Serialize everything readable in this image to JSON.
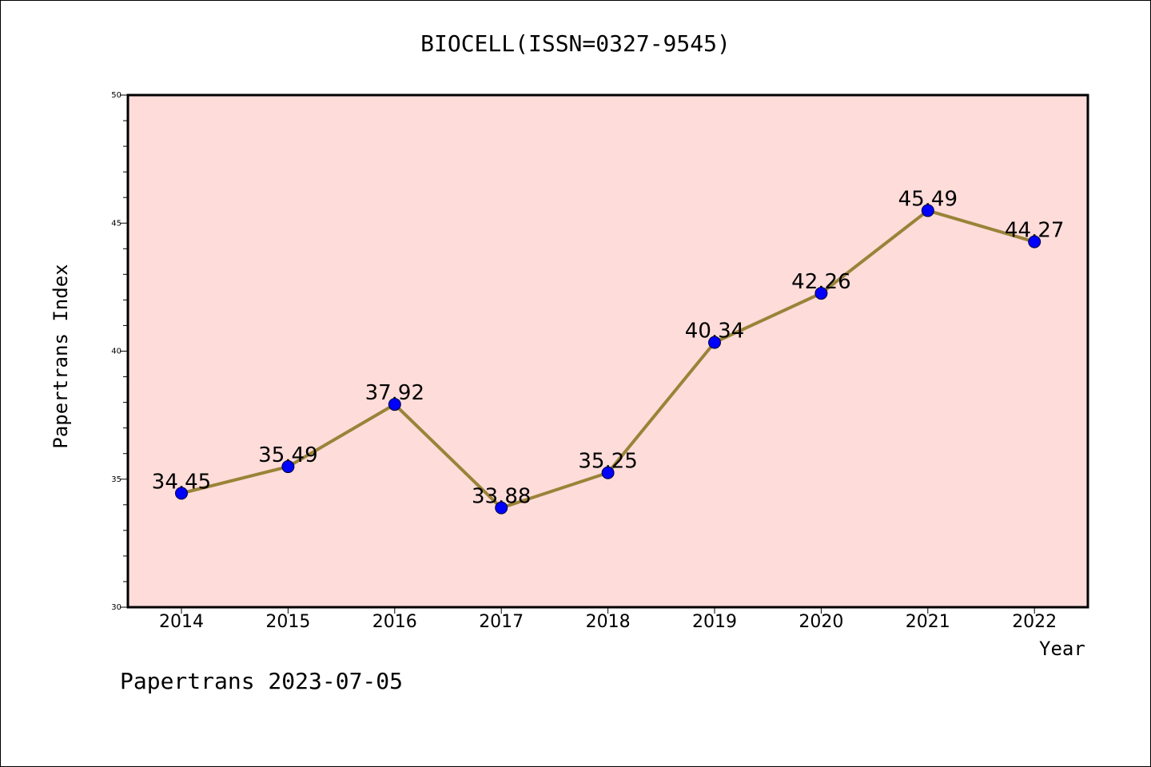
{
  "chart_data": {
    "type": "line",
    "title": "BIOCELL(ISSN=0327-9545)",
    "xlabel": "Year",
    "ylabel": "Papertrans Index",
    "categories": [
      "2014",
      "2015",
      "2016",
      "2017",
      "2018",
      "2019",
      "2020",
      "2021",
      "2022"
    ],
    "series": [
      {
        "values": [
          34.45,
          35.49,
          37.92,
          33.88,
          35.25,
          40.34,
          42.26,
          45.49,
          44.27
        ],
        "labels": [
          "34.45",
          "35.49",
          "37.92",
          "33.88",
          "35.25",
          "40.34",
          "42.26",
          "45.49",
          "44.27"
        ]
      }
    ],
    "ylim": [
      30,
      50
    ],
    "yticks": [
      "30",
      "35",
      "40",
      "45",
      "50"
    ],
    "grid": false,
    "colors": {
      "plot_background": "#fddcda",
      "line": "#9a8338",
      "marker": "#0000ff"
    }
  },
  "footer": {
    "watermark": "Papertrans 2023-07-05"
  }
}
